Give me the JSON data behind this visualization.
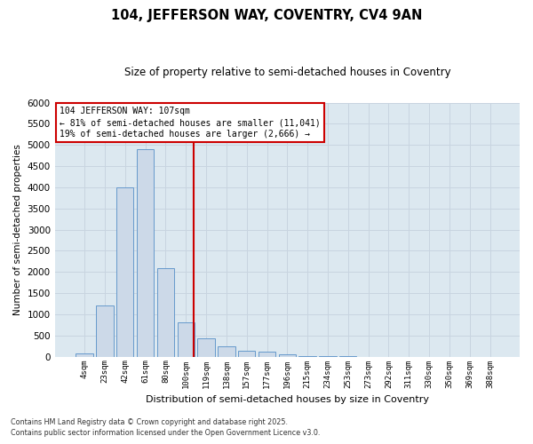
{
  "title_line1": "104, JEFFERSON WAY, COVENTRY, CV4 9AN",
  "title_line2": "Size of property relative to semi-detached houses in Coventry",
  "xlabel": "Distribution of semi-detached houses by size in Coventry",
  "ylabel": "Number of semi-detached properties",
  "categories": [
    "4sqm",
    "23sqm",
    "42sqm",
    "61sqm",
    "80sqm",
    "100sqm",
    "119sqm",
    "138sqm",
    "157sqm",
    "177sqm",
    "196sqm",
    "215sqm",
    "234sqm",
    "253sqm",
    "273sqm",
    "292sqm",
    "311sqm",
    "330sqm",
    "350sqm",
    "369sqm",
    "388sqm"
  ],
  "values": [
    75,
    1200,
    4000,
    4900,
    2100,
    800,
    430,
    240,
    130,
    120,
    50,
    20,
    8,
    3,
    1,
    0,
    0,
    0,
    0,
    0,
    0
  ],
  "bar_color": "#ccd9e8",
  "bar_edge_color": "#6699cc",
  "vline_color": "#cc0000",
  "vline_pos": 5.4,
  "annotation_text": "104 JEFFERSON WAY: 107sqm\n← 81% of semi-detached houses are smaller (11,041)\n19% of semi-detached houses are larger (2,666) →",
  "annotation_box_color": "#cc0000",
  "annotation_bg_color": "#ffffff",
  "ylim_max": 6000,
  "yticks": [
    0,
    500,
    1000,
    1500,
    2000,
    2500,
    3000,
    3500,
    4000,
    4500,
    5000,
    5500,
    6000
  ],
  "grid_color": "#c8d4e0",
  "background_color": "#dce8f0",
  "footer_line1": "Contains HM Land Registry data © Crown copyright and database right 2025.",
  "footer_line2": "Contains public sector information licensed under the Open Government Licence v3.0."
}
